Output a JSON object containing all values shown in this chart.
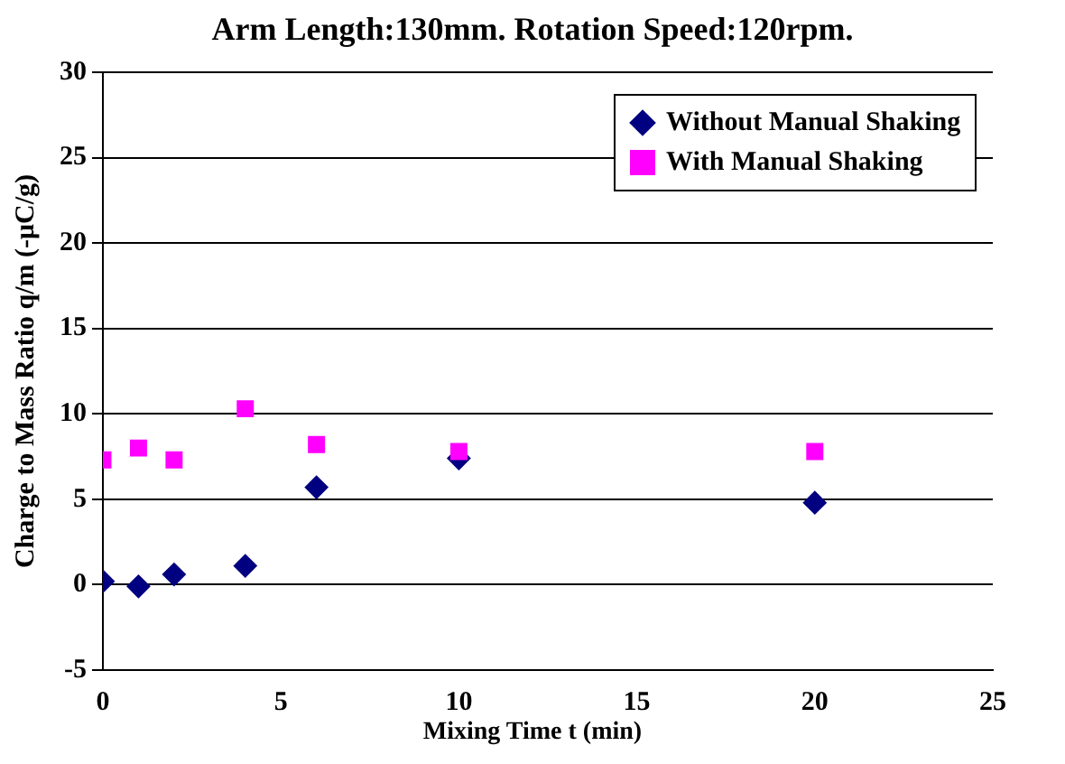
{
  "chart_data": {
    "type": "scatter",
    "title": "Arm Length:130mm. Rotation Speed:120rpm.",
    "xlabel": "Mixing Time t (min)",
    "ylabel": "Charge to Mass Ratio q/m (-μC/g)",
    "series": [
      {
        "name": "Without Manual Shaking",
        "color": "#000080",
        "marker": "diamond",
        "x": [
          0,
          1,
          2,
          4,
          6,
          10,
          20
        ],
        "values": [
          0.2,
          -0.1,
          0.6,
          1.1,
          5.7,
          7.4,
          4.8
        ]
      },
      {
        "name": "With Manual Shaking",
        "color": "#ff00ff",
        "marker": "square",
        "x": [
          0,
          1,
          2,
          4,
          6,
          10,
          20
        ],
        "values": [
          7.3,
          8.0,
          7.3,
          10.3,
          8.2,
          7.8,
          7.8
        ]
      }
    ],
    "xlim": [
      0,
      25
    ],
    "xticks": [
      0,
      5,
      10,
      15,
      20,
      25
    ],
    "ylim": [
      -5,
      30
    ],
    "yticks": [
      -5,
      0,
      5,
      10,
      15,
      20,
      25,
      30
    ],
    "grid": "y",
    "legend": "top right"
  }
}
